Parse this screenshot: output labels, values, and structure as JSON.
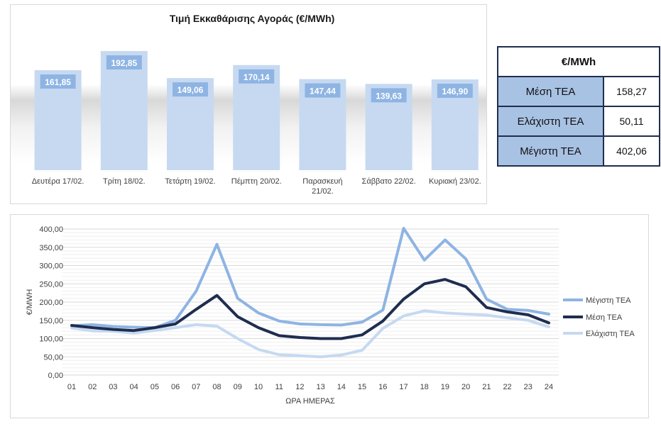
{
  "chart_data": [
    {
      "type": "bar",
      "title": "Τιμή Εκκαθάρισης Αγοράς (€/MWh)",
      "categories": [
        "Δευτέρα 17/02.",
        "Τρίτη 18/02.",
        "Τετάρτη 19/02.",
        "Πέμπτη 20/02.",
        "Παρασκευή 21/02.",
        "Σάββατο 22/02.",
        "Κυριακή 23/02."
      ],
      "values": [
        161.85,
        192.85,
        149.06,
        170.14,
        147.44,
        139.63,
        146.9
      ],
      "labels": [
        "161,85",
        "192,85",
        "149,06",
        "170,14",
        "147,44",
        "139,63",
        "146,90"
      ],
      "colors": {
        "bar": "#c6d9f1",
        "label_bg": "#8eb4e3"
      }
    },
    {
      "type": "line",
      "xlabel": "ΩΡΑ ΗΜΕΡΑΣ",
      "ylabel": "€/MWH",
      "ylim": [
        0,
        400
      ],
      "yticks": [
        "0,00",
        "50,00",
        "100,00",
        "150,00",
        "200,00",
        "250,00",
        "300,00",
        "350,00",
        "400,00"
      ],
      "x": [
        "01",
        "02",
        "03",
        "04",
        "05",
        "06",
        "07",
        "08",
        "09",
        "10",
        "11",
        "12",
        "13",
        "14",
        "15",
        "16",
        "17",
        "18",
        "19",
        "20",
        "21",
        "22",
        "23",
        "24"
      ],
      "grid": true,
      "legend": "right",
      "series": [
        {
          "name": "Μέγιστη ΤΕΑ",
          "color": "#8eb4e3",
          "values": [
            135,
            138,
            133,
            131,
            130,
            150,
            230,
            358,
            210,
            170,
            148,
            140,
            138,
            137,
            145,
            178,
            402,
            315,
            370,
            318,
            208,
            180,
            177,
            167
          ]
        },
        {
          "name": "Μέση ΤΕΑ",
          "color": "#1f2d4f",
          "values": [
            136,
            130,
            125,
            122,
            130,
            140,
            180,
            218,
            160,
            130,
            108,
            103,
            100,
            100,
            110,
            148,
            208,
            250,
            262,
            242,
            185,
            173,
            165,
            143
          ]
        },
        {
          "name": "Ελάχιστη ΤΕΑ",
          "color": "#c6d9f1",
          "values": [
            129,
            121,
            120,
            115,
            122,
            130,
            138,
            134,
            100,
            70,
            56,
            53,
            50,
            55,
            68,
            128,
            162,
            176,
            170,
            167,
            164,
            157,
            150,
            132
          ]
        }
      ]
    }
  ],
  "stats_table": {
    "header": "€/MWh",
    "rows": [
      {
        "label": "Μέση ΤΕΑ",
        "value": "158,27"
      },
      {
        "label": "Ελάχιστη ΤΕΑ",
        "value": "50,11"
      },
      {
        "label": "Μέγιστη ΤΕΑ",
        "value": "402,06"
      }
    ]
  }
}
